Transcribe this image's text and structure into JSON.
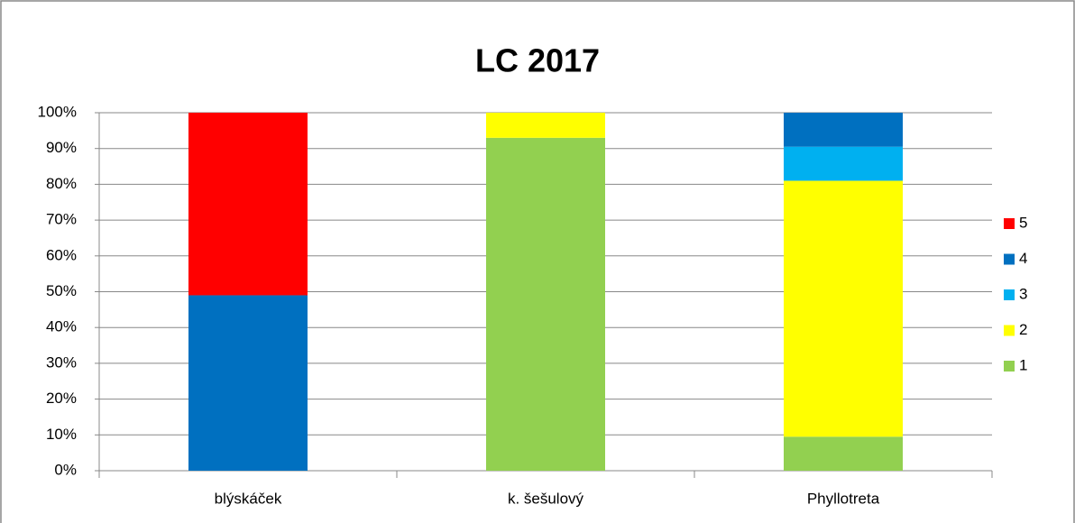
{
  "chart_data": {
    "type": "stacked_bar",
    "title": "LC 2017",
    "categories": [
      "blýskáček",
      "k. šešulový",
      "Phyllotreta"
    ],
    "series": [
      {
        "name": "1",
        "color": "#92d050",
        "values": [
          0,
          93,
          9.5
        ]
      },
      {
        "name": "2",
        "color": "#ffff00",
        "values": [
          0,
          7,
          71.5
        ]
      },
      {
        "name": "3",
        "color": "#00b0f0",
        "values": [
          0,
          0,
          9.5
        ]
      },
      {
        "name": "4",
        "color": "#0070c0",
        "values": [
          49,
          0,
          9.5
        ]
      },
      {
        "name": "5",
        "color": "#ff0000",
        "values": [
          51,
          0,
          0
        ]
      }
    ],
    "ylim": [
      0,
      100
    ],
    "yticks": [
      {
        "value": 0,
        "label": "0%"
      },
      {
        "value": 10,
        "label": "10%"
      },
      {
        "value": 20,
        "label": "20%"
      },
      {
        "value": 30,
        "label": "30%"
      },
      {
        "value": 40,
        "label": "40%"
      },
      {
        "value": 50,
        "label": "50%"
      },
      {
        "value": 60,
        "label": "60%"
      },
      {
        "value": 70,
        "label": "70%"
      },
      {
        "value": 80,
        "label": "80%"
      },
      {
        "value": 90,
        "label": "90%"
      },
      {
        "value": 100,
        "label": "100%"
      }
    ],
    "grid": true,
    "legend": "right"
  }
}
